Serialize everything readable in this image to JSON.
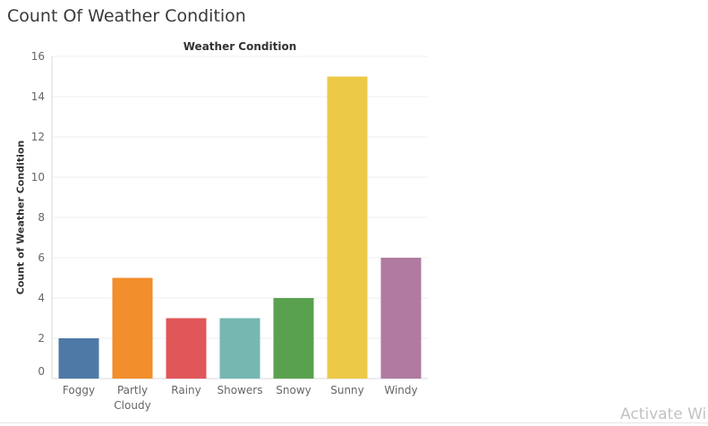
{
  "sheet": {
    "title": "Count Of Weather Condition",
    "watermark": "Activate Wi"
  },
  "colors": {
    "grid": "#efefef",
    "axis": "#d9d9d9",
    "tick_text": "#666666"
  },
  "chart_data": {
    "type": "bar",
    "title": "Weather Condition",
    "xlabel": "",
    "ylabel": "Count of Weather Condition",
    "ylim": [
      0,
      16
    ],
    "yticks": [
      0,
      2,
      4,
      6,
      8,
      10,
      12,
      14,
      16
    ],
    "grid": true,
    "categories": [
      "Foggy",
      "Partly Cloudy",
      "Rainy",
      "Showers",
      "Snowy",
      "Sunny",
      "Windy"
    ],
    "values": [
      2,
      5,
      3,
      3,
      4,
      15,
      6
    ],
    "bar_colors": [
      "#4e79a7",
      "#f28e2b",
      "#e15759",
      "#76b7b2",
      "#59a14f",
      "#edc948",
      "#b07aa1"
    ]
  }
}
